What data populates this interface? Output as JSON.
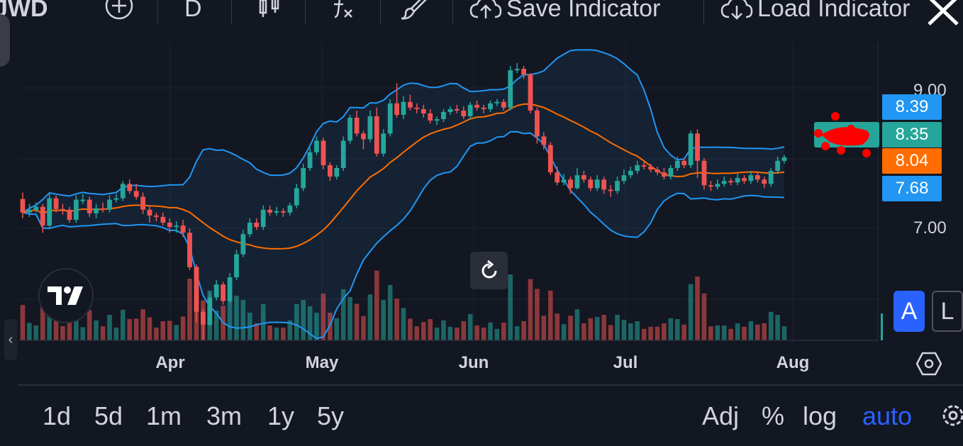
{
  "toolbar": {
    "symbol": "JWD",
    "interval": "D",
    "save_indicator": "Save Indicator",
    "load_indicator": "Load Indicator",
    "icons": [
      "add-symbol-icon",
      "candles-icon",
      "indicators-icon",
      "brush-icon",
      "cloud-upload-icon",
      "cloud-download-icon",
      "close-icon"
    ]
  },
  "price_axis": {
    "labels": [
      "9.00",
      "7.00"
    ],
    "tags": {
      "upper_band": "8.39",
      "last_price": "8.35",
      "middle_band": "8.04",
      "lower_band": "7.68"
    }
  },
  "time_axis": {
    "labels": [
      "Apr",
      "May",
      "Jun",
      "Jul",
      "Aug"
    ]
  },
  "ranges": [
    "1d",
    "5d",
    "1m",
    "3m",
    "1y",
    "5y"
  ],
  "modes": {
    "adj": "Adj",
    "percent": "%",
    "log": "log",
    "auto": "auto"
  },
  "buttons": {
    "a": "A",
    "l": "L"
  },
  "colors": {
    "background": "#131722",
    "up": "#26a69a",
    "down": "#ef5350",
    "band": "#2196f3",
    "basis": "#ff6d00",
    "accent": "#2962ff"
  },
  "chart_data": {
    "type": "candlestick",
    "title": "",
    "ylim": [
      6.0,
      9.65
    ],
    "indicators": [
      "Bollinger Bands"
    ],
    "x_axis_labels": [
      "Apr",
      "May",
      "Jun",
      "Jul",
      "Aug"
    ],
    "candles": [
      [
        7.77,
        7.58,
        7.86,
        7.5
      ],
      [
        7.58,
        7.62,
        7.7,
        7.52
      ],
      [
        7.62,
        7.66,
        7.72,
        7.58
      ],
      [
        7.66,
        7.4,
        7.7,
        7.3
      ],
      [
        7.4,
        7.78,
        7.84,
        7.36
      ],
      [
        7.78,
        7.63,
        7.82,
        7.58
      ],
      [
        7.63,
        7.62,
        7.7,
        7.55
      ],
      [
        7.62,
        7.48,
        7.66,
        7.44
      ],
      [
        7.48,
        7.76,
        7.82,
        7.44
      ],
      [
        7.76,
        7.76,
        7.84,
        7.7
      ],
      [
        7.76,
        7.57,
        7.8,
        7.52
      ],
      [
        7.57,
        7.64,
        7.7,
        7.5
      ],
      [
        7.64,
        7.62,
        7.72,
        7.58
      ],
      [
        7.62,
        7.76,
        7.82,
        7.58
      ],
      [
        7.76,
        7.78,
        7.84,
        7.72
      ],
      [
        7.78,
        7.98,
        8.02,
        7.74
      ],
      [
        7.98,
        7.88,
        8.04,
        7.84
      ],
      [
        7.88,
        7.8,
        7.98,
        7.76
      ],
      [
        7.8,
        7.62,
        7.86,
        7.56
      ],
      [
        7.62,
        7.54,
        7.68,
        7.44
      ],
      [
        7.54,
        7.52,
        7.58,
        7.46
      ],
      [
        7.52,
        7.44,
        7.58,
        7.4
      ],
      [
        7.44,
        7.38,
        7.5,
        7.3
      ],
      [
        7.38,
        7.4,
        7.46,
        7.3
      ],
      [
        7.4,
        7.3,
        7.48,
        7.24
      ],
      [
        7.3,
        6.82,
        7.36,
        6.78
      ],
      [
        6.82,
        6.2,
        6.86,
        6.05
      ],
      [
        6.2,
        6.02,
        6.24,
        5.8
      ],
      [
        6.02,
        6.4,
        6.46,
        6.0
      ],
      [
        6.4,
        6.58,
        6.64,
        6.36
      ],
      [
        6.58,
        6.35,
        6.62,
        6.3
      ],
      [
        6.35,
        6.68,
        6.74,
        6.32
      ],
      [
        6.68,
        7.0,
        7.06,
        6.64
      ],
      [
        7.0,
        7.28,
        7.34,
        6.96
      ],
      [
        7.28,
        7.44,
        7.5,
        7.24
      ],
      [
        7.44,
        7.38,
        7.5,
        7.34
      ],
      [
        7.38,
        7.62,
        7.68,
        7.34
      ],
      [
        7.62,
        7.58,
        7.68,
        7.54
      ],
      [
        7.58,
        7.6,
        7.66,
        7.54
      ],
      [
        7.6,
        7.58,
        7.64,
        7.52
      ],
      [
        7.58,
        7.68,
        7.72,
        7.54
      ],
      [
        7.68,
        7.92,
        7.98,
        7.64
      ],
      [
        7.92,
        8.2,
        8.26,
        7.88
      ],
      [
        8.2,
        8.42,
        8.48,
        8.16
      ],
      [
        8.42,
        8.58,
        8.64,
        8.38
      ],
      [
        8.58,
        8.24,
        8.62,
        8.18
      ],
      [
        8.24,
        8.08,
        8.28,
        8.02
      ],
      [
        8.08,
        8.2,
        8.24,
        8.04
      ],
      [
        8.2,
        8.58,
        8.64,
        8.16
      ],
      [
        8.58,
        8.9,
        8.94,
        8.54
      ],
      [
        8.9,
        8.68,
        9.0,
        8.64
      ],
      [
        8.68,
        8.6,
        8.72,
        8.46
      ],
      [
        8.6,
        8.92,
        9.0,
        8.56
      ],
      [
        8.92,
        8.4,
        9.04,
        8.36
      ],
      [
        8.4,
        8.68,
        8.74,
        8.36
      ],
      [
        8.68,
        9.1,
        9.16,
        8.64
      ],
      [
        9.1,
        8.94,
        9.38,
        8.9
      ],
      [
        8.94,
        9.12,
        9.2,
        8.88
      ],
      [
        9.12,
        9.04,
        9.22,
        9.0
      ],
      [
        9.04,
        9.02,
        9.1,
        8.96
      ],
      [
        9.02,
        8.96,
        9.08,
        8.9
      ],
      [
        8.96,
        8.86,
        9.02,
        8.82
      ],
      [
        8.86,
        8.88,
        8.92,
        8.8
      ],
      [
        8.88,
        8.98,
        9.02,
        8.84
      ],
      [
        8.98,
        9.02,
        9.06,
        8.94
      ],
      [
        9.02,
        9.0,
        9.08,
        8.96
      ],
      [
        9.0,
        8.92,
        9.06,
        8.88
      ],
      [
        8.92,
        9.08,
        9.12,
        8.88
      ],
      [
        9.08,
        9.04,
        9.14,
        9.0
      ],
      [
        9.04,
        9.02,
        9.08,
        8.96
      ],
      [
        9.02,
        9.1,
        9.14,
        8.98
      ],
      [
        9.1,
        9.12,
        9.16,
        9.06
      ],
      [
        9.12,
        9.04,
        9.16,
        9.0
      ],
      [
        9.04,
        9.56,
        9.62,
        9.0
      ],
      [
        9.56,
        9.58,
        9.66,
        9.52
      ],
      [
        9.58,
        9.5,
        9.62,
        9.44
      ],
      [
        9.5,
        9.0,
        9.52,
        8.96
      ],
      [
        9.0,
        8.64,
        9.04,
        8.54
      ],
      [
        8.64,
        8.52,
        8.7,
        8.46
      ],
      [
        8.52,
        8.14,
        8.56,
        8.1
      ],
      [
        8.14,
        8.0,
        8.22,
        7.96
      ],
      [
        8.0,
        8.04,
        8.12,
        7.96
      ],
      [
        8.04,
        7.92,
        8.08,
        7.84
      ],
      [
        7.92,
        8.1,
        8.2,
        7.9
      ],
      [
        8.1,
        8.04,
        8.16,
        8.0
      ],
      [
        8.04,
        7.92,
        8.08,
        7.88
      ],
      [
        7.92,
        8.04,
        8.1,
        7.88
      ],
      [
        8.04,
        7.9,
        8.08,
        7.84
      ],
      [
        7.9,
        7.88,
        7.96,
        7.8
      ],
      [
        7.88,
        8.02,
        8.08,
        7.84
      ],
      [
        8.02,
        8.1,
        8.18,
        7.98
      ],
      [
        8.1,
        8.16,
        8.22,
        8.06
      ],
      [
        8.16,
        8.24,
        8.3,
        8.12
      ],
      [
        8.24,
        8.22,
        8.28,
        8.18
      ],
      [
        8.22,
        8.18,
        8.26,
        8.14
      ],
      [
        8.18,
        8.14,
        8.22,
        8.1
      ],
      [
        8.14,
        8.08,
        8.2,
        8.04
      ],
      [
        8.08,
        8.2,
        8.24,
        8.04
      ],
      [
        8.2,
        8.3,
        8.36,
        8.16
      ],
      [
        8.3,
        8.24,
        8.34,
        8.2
      ],
      [
        8.24,
        8.68,
        8.72,
        8.2
      ],
      [
        8.68,
        8.3,
        8.74,
        8.06
      ],
      [
        8.3,
        7.96,
        8.34,
        7.9
      ],
      [
        7.96,
        7.94,
        8.02,
        7.88
      ],
      [
        7.94,
        7.98,
        8.04,
        7.9
      ],
      [
        7.98,
        8.02,
        8.08,
        7.94
      ],
      [
        8.02,
        8.0,
        8.06,
        7.96
      ],
      [
        8.0,
        8.06,
        8.12,
        7.96
      ],
      [
        8.06,
        8.02,
        8.1,
        7.98
      ],
      [
        8.02,
        8.1,
        8.16,
        7.98
      ],
      [
        8.1,
        8.04,
        8.14,
        8.0
      ],
      [
        8.04,
        7.98,
        8.08,
        7.92
      ],
      [
        7.98,
        8.16,
        8.2,
        7.94
      ],
      [
        8.16,
        8.3,
        8.36,
        8.12
      ],
      [
        8.3,
        8.35,
        8.38,
        8.26
      ]
    ]
  }
}
